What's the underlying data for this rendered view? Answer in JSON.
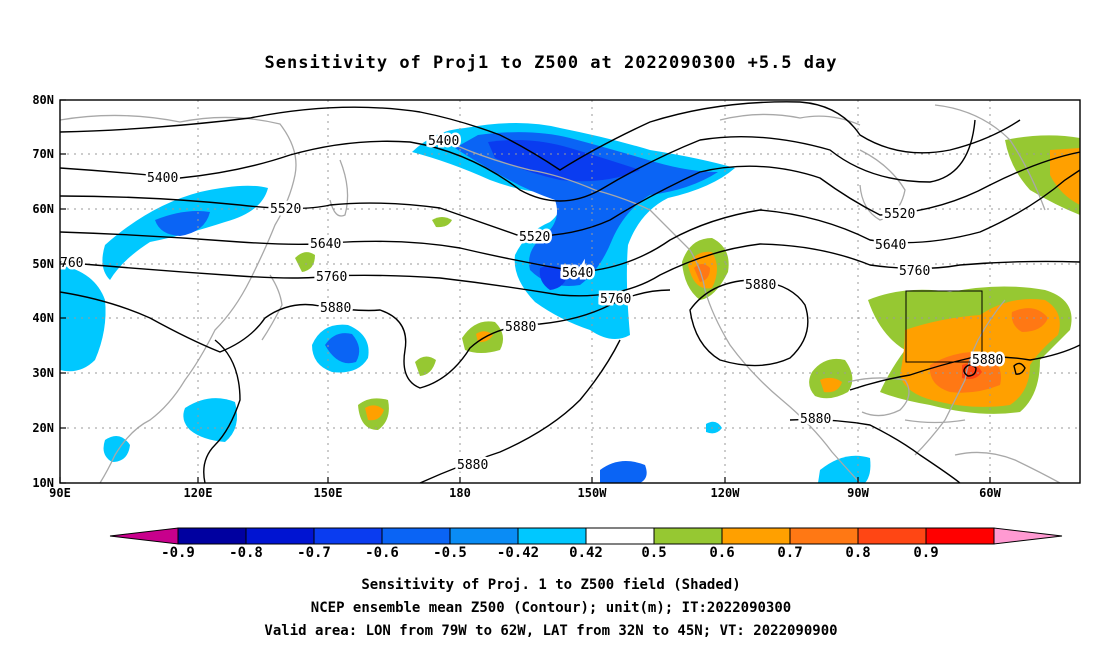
{
  "title": "Sensitivity of Proj1 to Z500 at 2022090300 +5.5 day",
  "map": {
    "lon_ticks": [
      "90E",
      "120E",
      "150E",
      "180",
      "150W",
      "120W",
      "90W",
      "60W"
    ],
    "lat_ticks": [
      "10N",
      "20N",
      "30N",
      "40N",
      "50N",
      "60N",
      "70N",
      "80N"
    ],
    "contour_labels": [
      "5400",
      "5400",
      "5520",
      "5520",
      "5520",
      "5640",
      "5640",
      "5640",
      "5760",
      "5760",
      "5760",
      "5880",
      "5880",
      "5880",
      "5880",
      "5880",
      "5880",
      "760"
    ],
    "valid_box": {
      "lon_from": "79W",
      "lon_to": "62W",
      "lat_from": "32N",
      "lat_to": "45N"
    }
  },
  "colorbar": {
    "labels": [
      "-0.9",
      "-0.8",
      "-0.7",
      "-0.6",
      "-0.5",
      "-0.42",
      "0.42",
      "0.5",
      "0.6",
      "0.7",
      "0.8",
      "0.9"
    ],
    "colors": [
      "#c8008c",
      "#0000a0",
      "#0014d2",
      "#0a3cf0",
      "#0a64f5",
      "#0a8cf5",
      "#00c8ff",
      "#ffffff",
      "#96c832",
      "#ffa000",
      "#ff7814",
      "#ff4614",
      "#ff0000",
      "#ff9ad2"
    ]
  },
  "caption": {
    "line1": "Sensitivity of Proj. 1 to Z500 field (Shaded)",
    "line2": "NCEP ensemble mean Z500 (Contour); unit(m); IT:2022090300",
    "line3": "Valid area: LON from 79W to 62W, LAT from 32N to 45N; VT: 2022090900"
  }
}
